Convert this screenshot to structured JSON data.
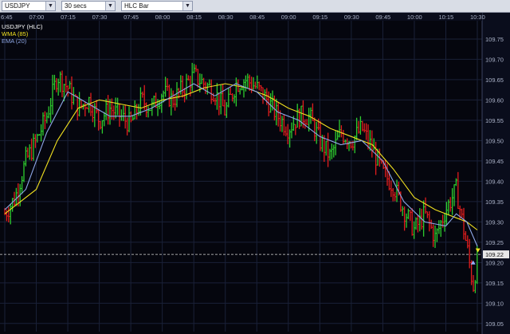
{
  "toolbar": {
    "symbol": "USDJPY",
    "interval": "30 secs",
    "chart_style": "HLC Bar"
  },
  "legend": [
    {
      "text": "USDJPY (HLC)",
      "color": "#ffffff"
    },
    {
      "text": "WMA (85)",
      "color": "#f0e020"
    },
    {
      "text": "EMA (20)",
      "color": "#8fa8e8"
    }
  ],
  "colors": {
    "background": "#05060e",
    "grid": "#1a2138",
    "up_bar": "#2ecc2e",
    "down_bar": "#e21d1d",
    "wma": "#f0e020",
    "ema": "#8fa8e8",
    "price_line": "#d8d8d8",
    "price_tag_bg": "#e8e8e8"
  },
  "chart_data": {
    "type": "line",
    "title": "USDJPY (HLC)",
    "x_ticks": [
      "6:45",
      "07:00",
      "07:15",
      "07:30",
      "07:45",
      "08:00",
      "08:15",
      "08:30",
      "08:45",
      "09:00",
      "09:15",
      "09:30",
      "09:45",
      "10:00",
      "10:15",
      "10:30"
    ],
    "y_ticks": [
      109.75,
      109.7,
      109.65,
      109.6,
      109.55,
      109.5,
      109.45,
      109.4,
      109.35,
      109.3,
      109.25,
      109.22,
      109.2,
      109.15,
      109.1,
      109.05
    ],
    "y_tick_labels": [
      "109.75",
      "109.70",
      "109.65",
      "109.60",
      "109.55",
      "109.50",
      "109.45",
      "109.40",
      "109.35",
      "109.30",
      "109.25",
      "109.22",
      "109.20",
      "109.15",
      "109.10",
      "109.05"
    ],
    "ylim": [
      109.03,
      109.795
    ],
    "current_price": 109.22,
    "grid": true,
    "price_path": [
      [
        "6:45",
        109.32
      ],
      [
        "6:50",
        109.36
      ],
      [
        "6:55",
        109.45
      ],
      [
        "7:00",
        109.5
      ],
      [
        "7:05",
        109.56
      ],
      [
        "7:10",
        109.66
      ],
      [
        "7:15",
        109.63
      ],
      [
        "7:20",
        109.58
      ],
      [
        "7:25",
        109.6
      ],
      [
        "7:30",
        109.55
      ],
      [
        "7:35",
        109.58
      ],
      [
        "7:40",
        109.56
      ],
      [
        "7:45",
        109.54
      ],
      [
        "7:50",
        109.6
      ],
      [
        "7:55",
        109.58
      ],
      [
        "8:00",
        109.62
      ],
      [
        "8:05",
        109.6
      ],
      [
        "8:10",
        109.63
      ],
      [
        "8:15",
        109.66
      ],
      [
        "8:20",
        109.64
      ],
      [
        "8:25",
        109.62
      ],
      [
        "8:30",
        109.57
      ],
      [
        "8:35",
        109.64
      ],
      [
        "8:40",
        109.65
      ],
      [
        "8:45",
        109.63
      ],
      [
        "8:50",
        109.6
      ],
      [
        "8:55",
        109.56
      ],
      [
        "9:00",
        109.53
      ],
      [
        "9:05",
        109.56
      ],
      [
        "9:10",
        109.56
      ],
      [
        "9:15",
        109.5
      ],
      [
        "9:20",
        109.46
      ],
      [
        "9:25",
        109.52
      ],
      [
        "9:30",
        109.5
      ],
      [
        "9:35",
        109.53
      ],
      [
        "9:40",
        109.48
      ],
      [
        "9:45",
        109.42
      ],
      [
        "9:50",
        109.39
      ],
      [
        "9:55",
        109.33
      ],
      [
        "10:00",
        109.28
      ],
      [
        "10:05",
        109.32
      ],
      [
        "10:10",
        109.26
      ],
      [
        "10:15",
        109.33
      ],
      [
        "10:20",
        109.38
      ],
      [
        "10:25",
        109.24
      ],
      [
        "10:28",
        109.14
      ],
      [
        "10:30",
        109.21
      ]
    ],
    "series": [
      {
        "name": "WMA (85)",
        "x": [
          "6:45",
          "7:00",
          "7:10",
          "7:20",
          "7:30",
          "7:40",
          "7:50",
          "8:00",
          "8:10",
          "8:20",
          "8:30",
          "8:40",
          "8:50",
          "9:00",
          "9:10",
          "9:20",
          "9:30",
          "9:40",
          "9:50",
          "10:00",
          "10:10",
          "10:20",
          "10:25",
          "10:30"
        ],
        "values": [
          109.32,
          109.38,
          109.5,
          109.58,
          109.6,
          109.59,
          109.58,
          109.6,
          109.61,
          109.63,
          109.64,
          109.63,
          109.61,
          109.58,
          109.56,
          109.53,
          109.51,
          109.49,
          109.43,
          109.36,
          109.33,
          109.31,
          109.3,
          109.28
        ]
      },
      {
        "name": "EMA (20)",
        "x": [
          "6:45",
          "6:55",
          "7:05",
          "7:15",
          "7:25",
          "7:35",
          "7:45",
          "7:55",
          "8:05",
          "8:15",
          "8:25",
          "8:35",
          "8:45",
          "8:55",
          "9:05",
          "9:15",
          "9:25",
          "9:35",
          "9:45",
          "9:55",
          "10:05",
          "10:15",
          "10:20",
          "10:25",
          "10:30"
        ],
        "values": [
          109.33,
          109.38,
          109.52,
          109.62,
          109.59,
          109.56,
          109.56,
          109.58,
          109.61,
          109.64,
          109.61,
          109.64,
          109.62,
          109.57,
          109.55,
          109.51,
          109.49,
          109.5,
          109.45,
          109.35,
          109.3,
          109.29,
          109.32,
          109.3,
          109.24
        ]
      }
    ]
  }
}
